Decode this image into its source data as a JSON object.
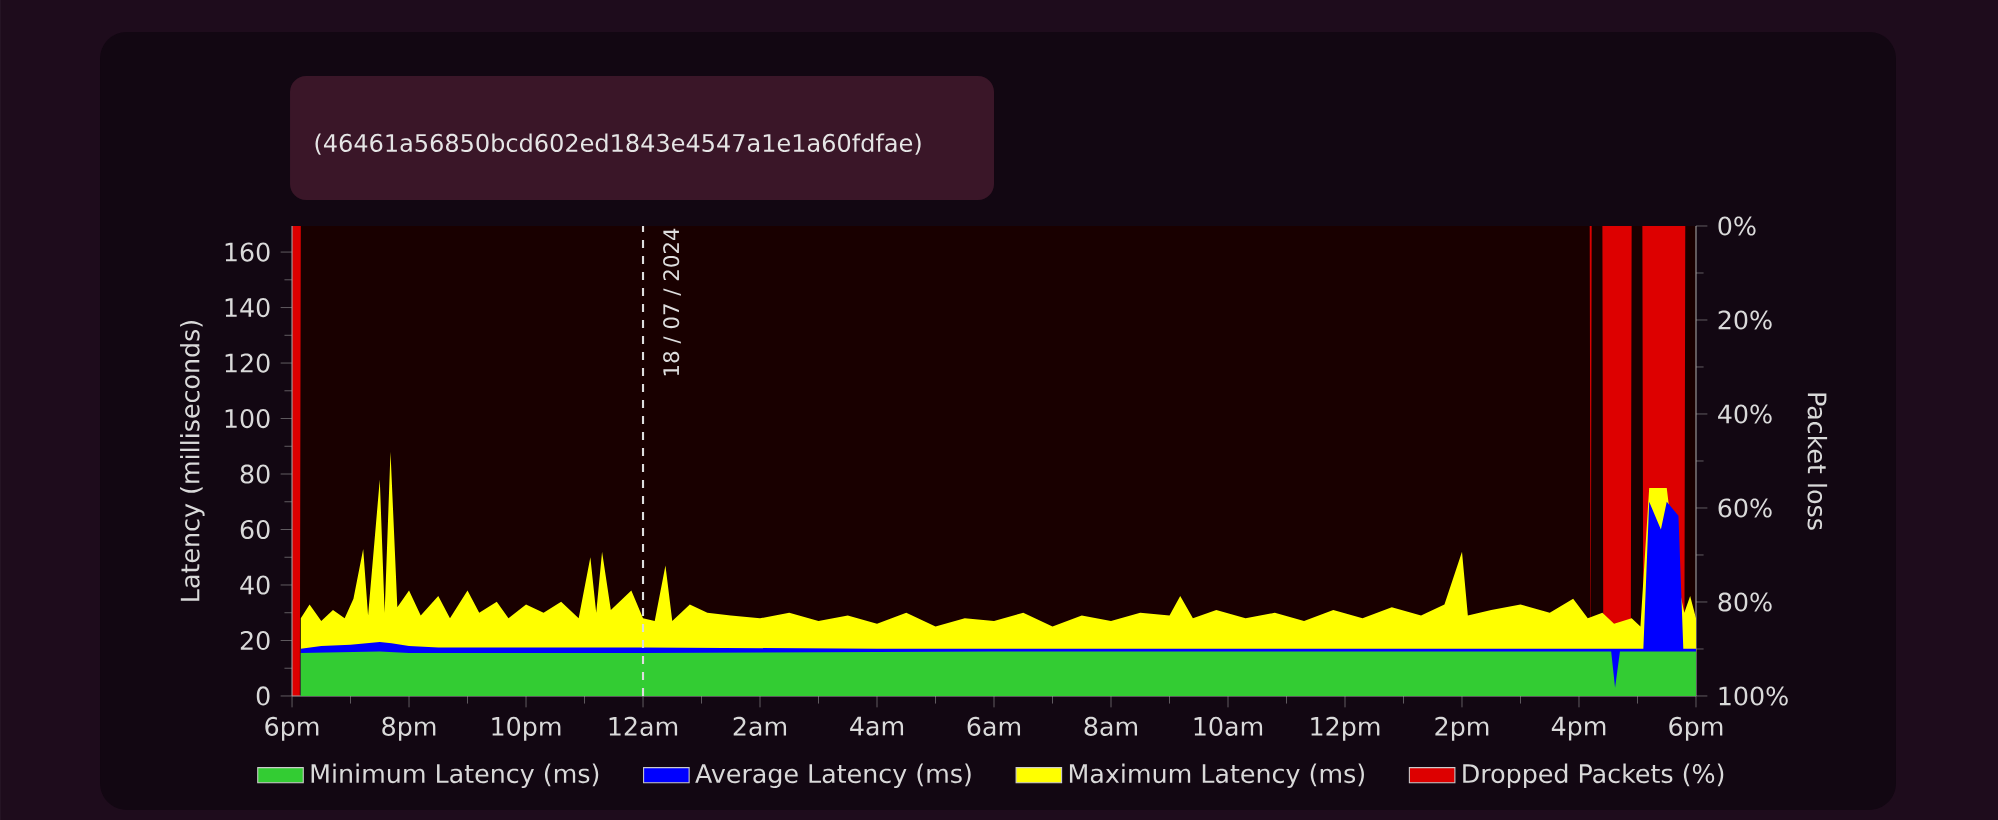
{
  "chart_data": {
    "type": "area",
    "subtitle": "(46461a56850bcd602ed1843e4547a1e1a60fdfae)",
    "ylabel": "Latency (milliseconds)",
    "y2label": "Packet loss",
    "xlim": [
      "2024-07-17T18:00",
      "2024-07-18T18:00"
    ],
    "xticks": [
      {
        "value": "2024-07-17T18:00",
        "label": "6pm"
      },
      {
        "value": "2024-07-17T20:00",
        "label": "8pm"
      },
      {
        "value": "2024-07-17T22:00",
        "label": "10pm"
      },
      {
        "value": "2024-07-18T00:00",
        "label": "12am"
      },
      {
        "value": "2024-07-18T02:00",
        "label": "2am"
      },
      {
        "value": "2024-07-18T04:00",
        "label": "4am"
      },
      {
        "value": "2024-07-18T06:00",
        "label": "6am"
      },
      {
        "value": "2024-07-18T08:00",
        "label": "8am"
      },
      {
        "value": "2024-07-18T10:00",
        "label": "10am"
      },
      {
        "value": "2024-07-18T12:00",
        "label": "12pm"
      },
      {
        "value": "2024-07-18T14:00",
        "label": "2pm"
      },
      {
        "value": "2024-07-18T16:00",
        "label": "4pm"
      },
      {
        "value": "2024-07-18T18:00",
        "label": "6pm"
      }
    ],
    "ylim": [
      0,
      169.4
    ],
    "yticks": [
      0,
      20,
      40,
      60,
      80,
      100,
      120,
      140,
      160
    ],
    "y2lim": [
      100,
      0
    ],
    "y2ticks": [
      {
        "value": 0,
        "label": "0%"
      },
      {
        "value": 20,
        "label": "20%"
      },
      {
        "value": 40,
        "label": "40%"
      },
      {
        "value": 60,
        "label": "60%"
      },
      {
        "value": 80,
        "label": "80%"
      },
      {
        "value": 100,
        "label": "100%"
      }
    ],
    "legend": "bottom",
    "grid": false,
    "ref_lines": [
      {
        "axis": "x",
        "value": "2024-07-18T00:00",
        "label": "18 / 07 / 2024",
        "color": "#dddddd",
        "line_style": "dashed"
      }
    ],
    "series": [
      {
        "name": "Minimum Latency (ms)",
        "color": "#33cc33",
        "x": [
          "2024-07-17T18:09",
          "2024-07-17T19:30",
          "2024-07-17T20:00",
          "2024-07-18T00:00",
          "2024-07-18T06:00",
          "2024-07-18T12:00",
          "2024-07-18T16:09",
          "2024-07-18T16:33",
          "2024-07-18T16:37",
          "2024-07-18T16:42",
          "2024-07-18T17:12",
          "2024-07-18T18:00"
        ],
        "values": [
          15.5,
          16,
          15.5,
          15.5,
          16,
          16,
          16,
          16,
          3,
          16,
          16,
          16
        ]
      },
      {
        "name": "Average Latency (ms)",
        "color": "#0000ff",
        "x": [
          "2024-07-17T18:09",
          "2024-07-17T18:30",
          "2024-07-17T19:00",
          "2024-07-17T19:30",
          "2024-07-17T19:42",
          "2024-07-17T20:00",
          "2024-07-17T20:30",
          "2024-07-17T22:00",
          "2024-07-18T00:00",
          "2024-07-18T04:00",
          "2024-07-18T08:00",
          "2024-07-18T12:00",
          "2024-07-18T16:09",
          "2024-07-18T16:54",
          "2024-07-18T17:06",
          "2024-07-18T17:12",
          "2024-07-18T17:24",
          "2024-07-18T17:30",
          "2024-07-18T17:42",
          "2024-07-18T17:47",
          "2024-07-18T18:00"
        ],
        "values": [
          17,
          18,
          18.5,
          19.5,
          19,
          18,
          17.5,
          17.5,
          17.5,
          17,
          17,
          17,
          17,
          17,
          17,
          70,
          60,
          70,
          65,
          17,
          17
        ]
      },
      {
        "name": "Maximum Latency (ms)",
        "color": "#ffff00",
        "x": [
          "2024-07-17T18:09",
          "2024-07-17T18:18",
          "2024-07-17T18:30",
          "2024-07-17T18:42",
          "2024-07-17T18:54",
          "2024-07-17T19:03",
          "2024-07-17T19:13",
          "2024-07-17T19:18",
          "2024-07-17T19:30",
          "2024-07-17T19:35",
          "2024-07-17T19:41",
          "2024-07-17T19:48",
          "2024-07-17T20:00",
          "2024-07-17T20:12",
          "2024-07-17T20:30",
          "2024-07-17T20:42",
          "2024-07-17T21:00",
          "2024-07-17T21:12",
          "2024-07-17T21:30",
          "2024-07-17T21:42",
          "2024-07-17T22:00",
          "2024-07-17T22:18",
          "2024-07-17T22:36",
          "2024-07-17T22:54",
          "2024-07-17T23:06",
          "2024-07-17T23:12",
          "2024-07-17T23:18",
          "2024-07-17T23:27",
          "2024-07-17T23:48",
          "2024-07-18T00:00",
          "2024-07-18T00:12",
          "2024-07-18T00:23",
          "2024-07-18T00:30",
          "2024-07-18T00:48",
          "2024-07-18T01:06",
          "2024-07-18T01:30",
          "2024-07-18T02:00",
          "2024-07-18T02:30",
          "2024-07-18T03:00",
          "2024-07-18T03:30",
          "2024-07-18T04:00",
          "2024-07-18T04:30",
          "2024-07-18T05:00",
          "2024-07-18T05:30",
          "2024-07-18T06:00",
          "2024-07-18T06:30",
          "2024-07-18T07:00",
          "2024-07-18T07:30",
          "2024-07-18T08:00",
          "2024-07-18T08:30",
          "2024-07-18T09:00",
          "2024-07-18T09:11",
          "2024-07-18T09:24",
          "2024-07-18T09:48",
          "2024-07-18T10:18",
          "2024-07-18T10:48",
          "2024-07-18T11:18",
          "2024-07-18T11:48",
          "2024-07-18T12:18",
          "2024-07-18T12:48",
          "2024-07-18T13:18",
          "2024-07-18T13:42",
          "2024-07-18T14:00",
          "2024-07-18T14:06",
          "2024-07-18T14:30",
          "2024-07-18T15:00",
          "2024-07-18T15:30",
          "2024-07-18T15:54",
          "2024-07-18T16:09",
          "2024-07-18T16:24",
          "2024-07-18T16:36",
          "2024-07-18T16:54",
          "2024-07-18T17:03",
          "2024-07-18T17:12",
          "2024-07-18T17:30",
          "2024-07-18T17:42",
          "2024-07-18T17:48",
          "2024-07-18T17:54",
          "2024-07-18T18:00"
        ],
        "values": [
          28,
          33,
          27,
          31,
          28,
          35,
          53,
          29,
          78,
          30,
          88,
          32,
          38,
          29,
          36,
          28,
          38,
          30,
          34,
          28,
          33,
          30,
          34,
          28,
          50,
          30,
          52,
          31,
          38,
          28,
          27,
          47,
          27,
          33,
          30,
          29,
          28,
          30,
          27,
          29,
          26,
          30,
          25,
          28,
          27,
          30,
          25,
          29,
          27,
          30,
          29,
          36,
          28,
          31,
          28,
          30,
          27,
          31,
          28,
          32,
          29,
          33,
          52,
          29,
          31,
          33,
          30,
          35,
          28,
          30,
          26,
          28,
          25,
          75,
          75,
          40,
          30,
          36,
          28
        ]
      },
      {
        "name": "Dropped Packets (%)",
        "color": "#dd0000",
        "axis": "y2",
        "x": [
          "2024-07-17T18:00",
          "2024-07-17T18:08",
          "2024-07-17T18:09",
          "2024-07-18T16:11",
          "2024-07-18T16:12",
          "2024-07-18T16:13",
          "2024-07-18T16:24",
          "2024-07-18T16:25",
          "2024-07-18T16:53",
          "2024-07-18T16:54",
          "2024-07-18T17:05",
          "2024-07-18T17:06",
          "2024-07-18T17:48",
          "2024-07-18T17:49",
          "2024-07-18T18:00"
        ],
        "values": [
          100,
          100,
          0,
          0,
          100,
          0,
          0,
          100,
          100,
          0,
          0,
          100,
          100,
          0,
          0
        ]
      }
    ]
  }
}
